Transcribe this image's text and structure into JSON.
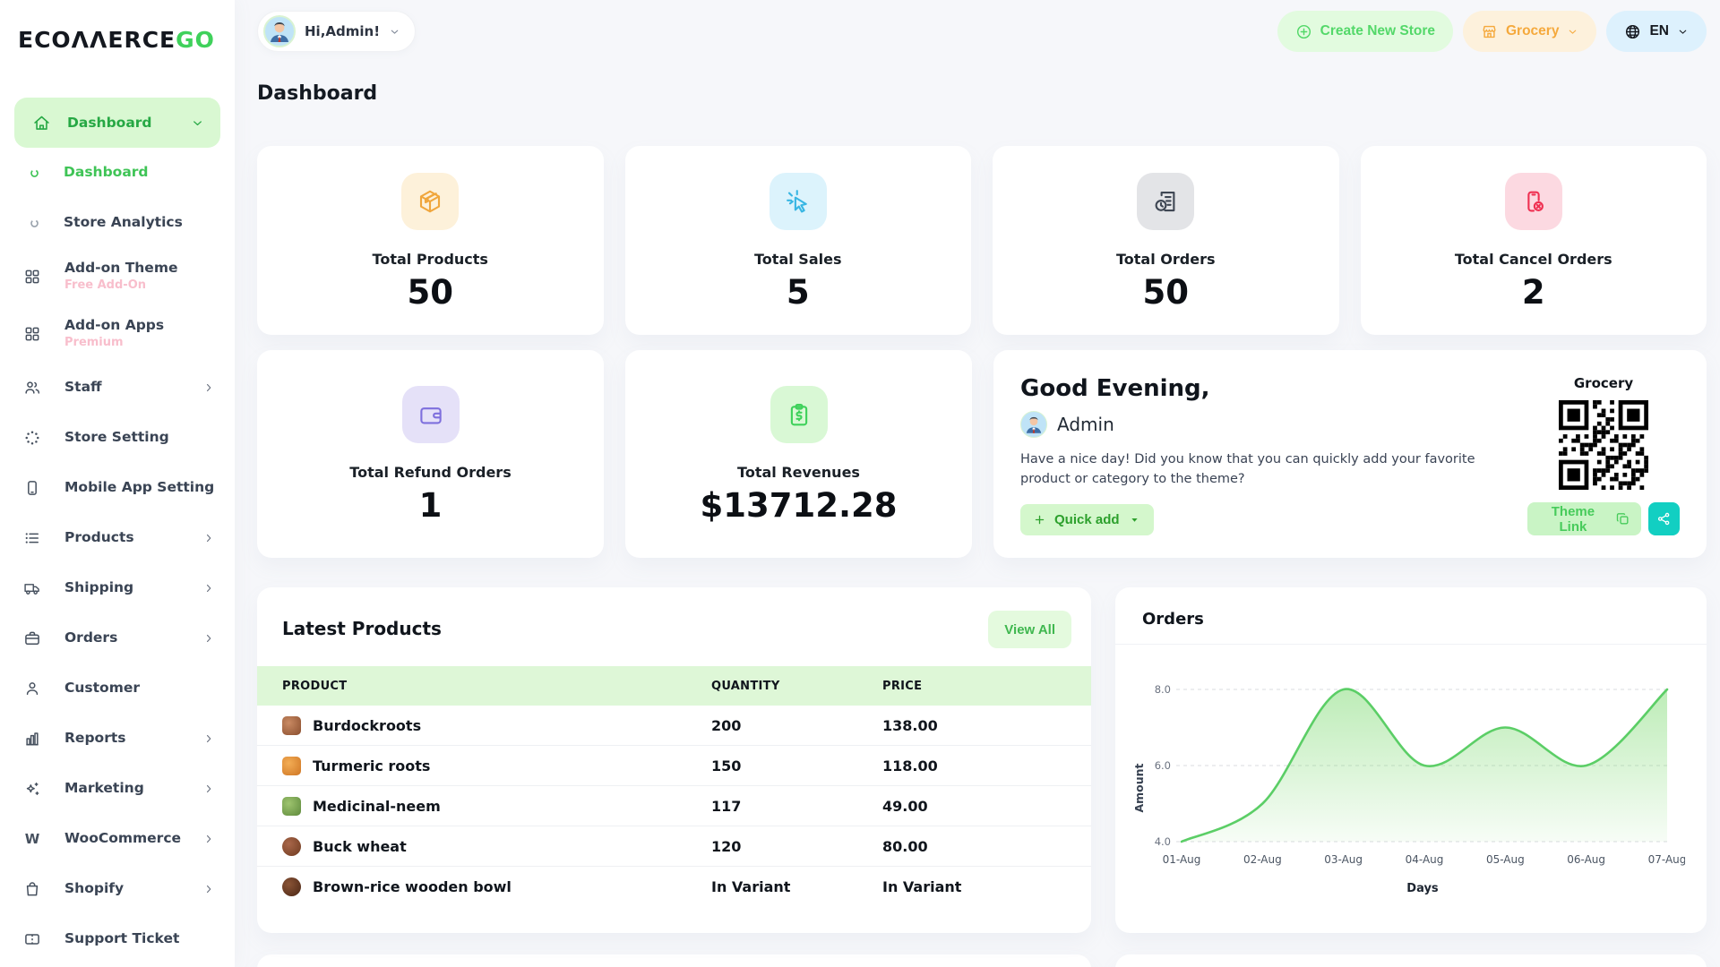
{
  "brand": {
    "name_black": "ECOΛΛERCE",
    "name_green": "GO"
  },
  "topbar": {
    "greeting": "Hi,Admin!",
    "create_store": "Create New Store",
    "store_name": "Grocery",
    "language": "EN"
  },
  "page_title": "Dashboard",
  "sidebar": {
    "items": [
      {
        "label": "Dashboard"
      },
      {
        "label": "Dashboard"
      },
      {
        "label": "Store Analytics"
      },
      {
        "label": "Add-on Theme",
        "badge": "Free Add-On"
      },
      {
        "label": "Add-on Apps",
        "badge": "Premium"
      },
      {
        "label": "Staff"
      },
      {
        "label": "Store Setting"
      },
      {
        "label": "Mobile App Setting"
      },
      {
        "label": "Products"
      },
      {
        "label": "Shipping"
      },
      {
        "label": "Orders"
      },
      {
        "label": "Customer"
      },
      {
        "label": "Reports"
      },
      {
        "label": "Marketing"
      },
      {
        "label": "WooCommerce"
      },
      {
        "label": "Shopify"
      },
      {
        "label": "Support Ticket"
      }
    ]
  },
  "stats": [
    {
      "label": "Total Products",
      "value": "50"
    },
    {
      "label": "Total Sales",
      "value": "5"
    },
    {
      "label": "Total Orders",
      "value": "50"
    },
    {
      "label": "Total Cancel Orders",
      "value": "2"
    },
    {
      "label": "Total Refund Orders",
      "value": "1"
    },
    {
      "label": "Total Revenues",
      "value": "$13712.28"
    }
  ],
  "greeting_card": {
    "title": "Good Evening,",
    "user": "Admin",
    "message": "Have a nice day! Did you know that you can quickly add your favorite product or category to the theme?",
    "quick_add": "Quick add",
    "store": "Grocery",
    "theme_link": "Theme Link"
  },
  "latest_products": {
    "title": "Latest Products",
    "view_all": "View All",
    "columns": [
      "PRODUCT",
      "QUANTITY",
      "PRICE"
    ],
    "rows": [
      {
        "name": "Burdockroots",
        "qty": "200",
        "price": "138.00",
        "thumb_color": "#a9674a"
      },
      {
        "name": "Turmeric roots",
        "qty": "150",
        "price": "118.00",
        "thumb_color": "#e08a3c"
      },
      {
        "name": "Medicinal-neem",
        "qty": "117",
        "price": "49.00",
        "thumb_color": "#6f9e4f"
      },
      {
        "name": "Buck wheat",
        "qty": "120",
        "price": "80.00",
        "thumb_color": "#8a4e2e"
      },
      {
        "name": "Brown-rice wooden bowl",
        "qty": "In Variant",
        "price": "In Variant",
        "thumb_color": "#5e3322"
      }
    ]
  },
  "chart_data": {
    "type": "area",
    "title": "Orders",
    "x": [
      "01-Aug",
      "02-Aug",
      "03-Aug",
      "04-Aug",
      "05-Aug",
      "06-Aug",
      "07-Aug"
    ],
    "values": [
      4,
      5,
      8,
      6,
      7,
      6,
      8
    ],
    "xlabel": "Days",
    "ylabel": "Amount",
    "yticks": [
      4.0,
      6.0,
      8.0
    ],
    "ylim": [
      4,
      8
    ],
    "line_color": "#5bce66",
    "fill_color": "#7bd96f",
    "grid": "dashed",
    "legend": "none"
  },
  "colors": {
    "accent_green": "#3fd15b",
    "active_pill_bg": "#d9f8d2",
    "active_text": "#26a844",
    "orange": "#f0a63c",
    "blue": "#38b6e3",
    "gray_dark": "#3f4754",
    "red": "#ef3152",
    "purple": "#7e6fdd",
    "teal": "#12cfc2",
    "table_header_bg": "#def7d7"
  }
}
